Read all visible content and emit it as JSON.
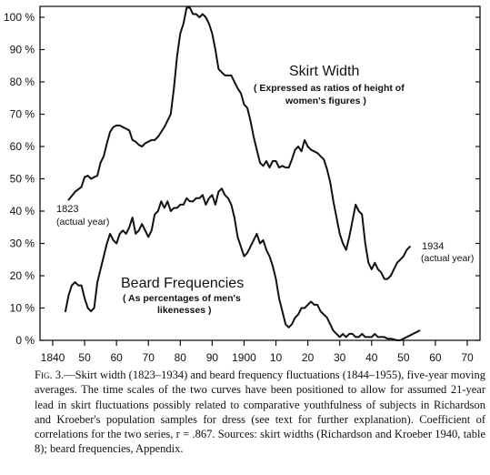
{
  "chart_data": {
    "type": "line",
    "x_axis": {
      "ticks": [
        1840,
        1850,
        1860,
        1870,
        1880,
        1890,
        1900,
        1910,
        1920,
        1930,
        1940,
        1950,
        1960,
        1970
      ],
      "tick_labels": [
        "1840",
        "50",
        "60",
        "70",
        "80",
        "90",
        "1900",
        "10",
        "20",
        "30",
        "40",
        "50",
        "60",
        "70"
      ],
      "range": [
        1840,
        1978
      ]
    },
    "y_axis": {
      "ticks": [
        0,
        10,
        20,
        30,
        40,
        50,
        60,
        70,
        80,
        90,
        100
      ],
      "tick_labels": [
        "0 %",
        "10 %",
        "20 %",
        "30 %",
        "40 %",
        "50 %",
        "60 %",
        "70 %",
        "80 %",
        "90 %",
        "100 %"
      ],
      "range": [
        0,
        103
      ]
    },
    "grid": false,
    "series": [
      {
        "name": "Skirt Width",
        "points": [
          [
            1845,
            43.5
          ],
          [
            1847,
            46
          ],
          [
            1849,
            47.5
          ],
          [
            1850,
            50.5
          ],
          [
            1851,
            51
          ],
          [
            1852,
            50
          ],
          [
            1853,
            50.5
          ],
          [
            1854,
            51
          ],
          [
            1855,
            55
          ],
          [
            1856,
            57
          ],
          [
            1857,
            61
          ],
          [
            1858,
            64.5
          ],
          [
            1859,
            66
          ],
          [
            1860,
            66.5
          ],
          [
            1861,
            66.5
          ],
          [
            1862,
            66
          ],
          [
            1863,
            65.5
          ],
          [
            1864,
            65
          ],
          [
            1865,
            62
          ],
          [
            1866,
            61.5
          ],
          [
            1867,
            60.5
          ],
          [
            1868,
            60
          ],
          [
            1869,
            61
          ],
          [
            1870,
            61.5
          ],
          [
            1871,
            62
          ],
          [
            1872,
            62
          ],
          [
            1873,
            63
          ],
          [
            1874,
            64.5
          ],
          [
            1875,
            66
          ],
          [
            1876,
            68
          ],
          [
            1877,
            70
          ],
          [
            1878,
            78
          ],
          [
            1879,
            88
          ],
          [
            1880,
            95
          ],
          [
            1881,
            98
          ],
          [
            1882,
            103
          ],
          [
            1883,
            103
          ],
          [
            1884,
            101
          ],
          [
            1885,
            101
          ],
          [
            1886,
            100
          ],
          [
            1887,
            101
          ],
          [
            1888,
            100
          ],
          [
            1889,
            98
          ],
          [
            1890,
            95
          ],
          [
            1891,
            90
          ],
          [
            1892,
            84
          ],
          [
            1893,
            83
          ],
          [
            1894,
            82
          ],
          [
            1895,
            82
          ],
          [
            1896,
            82
          ],
          [
            1897,
            80
          ],
          [
            1898,
            78
          ],
          [
            1899,
            76.5
          ],
          [
            1900,
            73
          ],
          [
            1901,
            72
          ],
          [
            1902,
            68
          ],
          [
            1903,
            63
          ],
          [
            1904,
            59
          ],
          [
            1905,
            55
          ],
          [
            1906,
            54
          ],
          [
            1907,
            55.5
          ],
          [
            1908,
            53.5
          ],
          [
            1909,
            55.5
          ],
          [
            1910,
            55.5
          ],
          [
            1911,
            53.5
          ],
          [
            1912,
            54
          ],
          [
            1913,
            53.5
          ],
          [
            1914,
            53.5
          ],
          [
            1915,
            56
          ],
          [
            1916,
            59
          ],
          [
            1917,
            60
          ],
          [
            1918,
            58.5
          ],
          [
            1919,
            62
          ],
          [
            1920,
            60
          ],
          [
            1921,
            59
          ],
          [
            1922,
            58.5
          ],
          [
            1923,
            58
          ],
          [
            1924,
            57
          ],
          [
            1925,
            56
          ],
          [
            1926,
            53
          ],
          [
            1927,
            49
          ],
          [
            1928,
            43
          ],
          [
            1929,
            38
          ],
          [
            1930,
            33
          ],
          [
            1931,
            30
          ],
          [
            1932,
            28
          ],
          [
            1933,
            32
          ],
          [
            1934,
            37
          ],
          [
            1935,
            42
          ],
          [
            1936,
            40
          ],
          [
            1937,
            39
          ],
          [
            1938,
            30
          ],
          [
            1939,
            24
          ],
          [
            1940,
            22
          ],
          [
            1941,
            24
          ],
          [
            1942,
            22
          ],
          [
            1943,
            21
          ],
          [
            1944,
            19
          ],
          [
            1945,
            19
          ],
          [
            1946,
            20
          ],
          [
            1947,
            22
          ],
          [
            1948,
            24
          ],
          [
            1949,
            25
          ],
          [
            1950,
            26
          ],
          [
            1951,
            28
          ],
          [
            1952,
            29
          ]
        ]
      },
      {
        "name": "Beard Frequencies",
        "points": [
          [
            1844,
            9
          ],
          [
            1845,
            14
          ],
          [
            1846,
            17
          ],
          [
            1847,
            18
          ],
          [
            1848,
            17
          ],
          [
            1849,
            17
          ],
          [
            1850,
            13
          ],
          [
            1851,
            10
          ],
          [
            1852,
            9
          ],
          [
            1853,
            10
          ],
          [
            1854,
            18
          ],
          [
            1855,
            22
          ],
          [
            1856,
            26
          ],
          [
            1857,
            30
          ],
          [
            1858,
            33
          ],
          [
            1859,
            31
          ],
          [
            1860,
            30
          ],
          [
            1861,
            33
          ],
          [
            1862,
            34
          ],
          [
            1863,
            33
          ],
          [
            1864,
            35
          ],
          [
            1865,
            38
          ],
          [
            1866,
            33
          ],
          [
            1867,
            34
          ],
          [
            1868,
            36
          ],
          [
            1869,
            34
          ],
          [
            1870,
            32
          ],
          [
            1871,
            34
          ],
          [
            1872,
            39
          ],
          [
            1873,
            40
          ],
          [
            1874,
            43
          ],
          [
            1875,
            41
          ],
          [
            1876,
            43
          ],
          [
            1877,
            40
          ],
          [
            1878,
            41
          ],
          [
            1879,
            41
          ],
          [
            1880,
            42
          ],
          [
            1881,
            42
          ],
          [
            1882,
            44
          ],
          [
            1883,
            43
          ],
          [
            1884,
            43
          ],
          [
            1885,
            44
          ],
          [
            1886,
            44
          ],
          [
            1887,
            45
          ],
          [
            1888,
            42
          ],
          [
            1889,
            44
          ],
          [
            1890,
            45
          ],
          [
            1891,
            42
          ],
          [
            1892,
            46
          ],
          [
            1893,
            47
          ],
          [
            1894,
            45
          ],
          [
            1895,
            44
          ],
          [
            1896,
            42
          ],
          [
            1897,
            38
          ],
          [
            1898,
            32
          ],
          [
            1899,
            29
          ],
          [
            1900,
            26
          ],
          [
            1901,
            27
          ],
          [
            1902,
            29
          ],
          [
            1903,
            31
          ],
          [
            1904,
            33
          ],
          [
            1905,
            30
          ],
          [
            1906,
            31
          ],
          [
            1907,
            28
          ],
          [
            1908,
            26
          ],
          [
            1909,
            23
          ],
          [
            1910,
            19
          ],
          [
            1911,
            13
          ],
          [
            1912,
            9
          ],
          [
            1913,
            5
          ],
          [
            1914,
            4
          ],
          [
            1915,
            5
          ],
          [
            1916,
            7
          ],
          [
            1917,
            8
          ],
          [
            1918,
            10
          ],
          [
            1919,
            10
          ],
          [
            1920,
            11
          ],
          [
            1921,
            12
          ],
          [
            1922,
            11
          ],
          [
            1923,
            11
          ],
          [
            1924,
            9
          ],
          [
            1925,
            8
          ],
          [
            1926,
            7
          ],
          [
            1927,
            5
          ],
          [
            1928,
            3
          ],
          [
            1929,
            2
          ],
          [
            1930,
            1
          ],
          [
            1931,
            2
          ],
          [
            1932,
            1
          ],
          [
            1933,
            2
          ],
          [
            1934,
            2
          ],
          [
            1935,
            1
          ],
          [
            1936,
            1
          ],
          [
            1937,
            2
          ],
          [
            1938,
            1
          ],
          [
            1939,
            1
          ],
          [
            1940,
            1
          ],
          [
            1941,
            2
          ],
          [
            1942,
            1
          ],
          [
            1943,
            1
          ],
          [
            1944,
            1
          ],
          [
            1945,
            0.5
          ],
          [
            1946,
            0.5
          ],
          [
            1947,
            0.3
          ],
          [
            1948,
            0
          ],
          [
            1949,
            0
          ],
          [
            1950,
            0.5
          ],
          [
            1951,
            1
          ],
          [
            1952,
            1.5
          ],
          [
            1953,
            2
          ],
          [
            1954,
            2.5
          ],
          [
            1955,
            3
          ]
        ]
      }
    ],
    "annotations": {
      "skirt_title": "Skirt Width",
      "skirt_sub_1": "( Expressed as ratios of height of",
      "skirt_sub_2": "women's figures )",
      "beard_title": "Beard Frequencies",
      "beard_sub_1": "( As percentages of men's",
      "beard_sub_2": "likenesses )",
      "start_year": "1823",
      "start_note": "(actual year)",
      "end_year": "1934",
      "end_note": "(actual year)"
    }
  },
  "caption": {
    "figure_label": "Fig. 3.",
    "text": "—Skirt width (1823–1934) and beard frequency fluctuations (1844–1955), five-year moving averages. The time scales of the two curves have been positioned to allow for assumed 21-year lead in skirt fluctuations possibly related to comparative youthfulness of subjects in Richardson and Kroeber's population samples for dress (see text for further explanation). Coefficient of correlations for the two series, r = .867. Sources: skirt widths (Richardson and Kroeber 1940, table 8); beard frequencies, Appendix."
  }
}
